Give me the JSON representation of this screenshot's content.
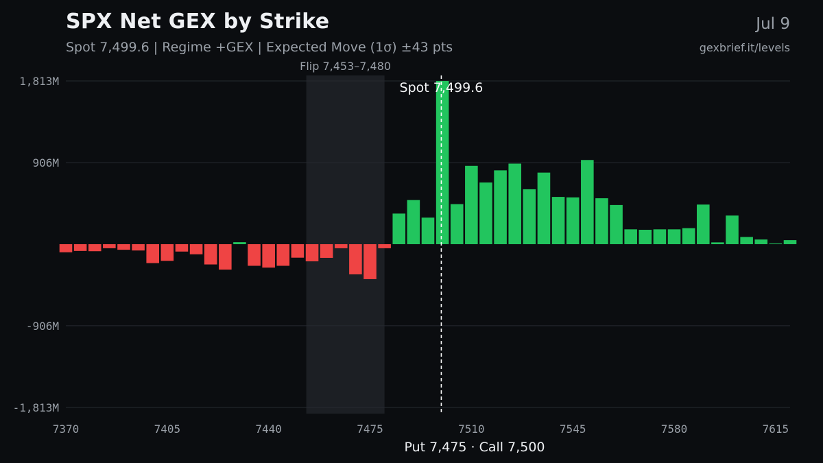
{
  "header": {
    "title": "SPX Net GEX by Strike",
    "subtitle": "Spot 7,499.6 | Regime +GEX | Expected Move (1σ) ±43 pts",
    "date": "Jul 9",
    "source": "gexbrief.it/levels"
  },
  "colors": {
    "background": "#0b0d10",
    "positive": "#22c55e",
    "negative": "#ef4444",
    "grid": "#262a31",
    "flip_zone": "#1c1f24",
    "spot_line": "#ffffff"
  },
  "chart_data": {
    "type": "bar",
    "title": "SPX Net GEX by Strike",
    "xlabel": "Put 7,475 · Call 7,500",
    "ylabel": "",
    "unit": "M",
    "ylim": [
      -1813,
      1813
    ],
    "xlim": [
      7370,
      7620
    ],
    "y_ticks": [
      1813,
      906,
      -906,
      -1813
    ],
    "y_tick_labels": [
      "1,813M",
      "906M",
      "-906M",
      "-1,813M"
    ],
    "x_ticks": [
      7370,
      7405,
      7440,
      7475,
      7510,
      7545,
      7580,
      7615
    ],
    "x_tick_labels": [
      "7370",
      "7405",
      "7440",
      "7475",
      "7510",
      "7545",
      "7580",
      "7615"
    ],
    "strikes": [
      7370,
      7375,
      7380,
      7385,
      7390,
      7395,
      7400,
      7405,
      7410,
      7415,
      7420,
      7425,
      7430,
      7435,
      7440,
      7445,
      7450,
      7455,
      7460,
      7465,
      7470,
      7475,
      7480,
      7485,
      7490,
      7495,
      7500,
      7505,
      7510,
      7515,
      7520,
      7525,
      7530,
      7535,
      7540,
      7545,
      7550,
      7555,
      7560,
      7565,
      7570,
      7575,
      7580,
      7585,
      7590,
      7595,
      7600,
      7605,
      7610,
      7615,
      7620
    ],
    "values": [
      -90,
      -75,
      -78,
      -45,
      -62,
      -70,
      -210,
      -185,
      -82,
      -112,
      -225,
      -282,
      22,
      -240,
      -260,
      -240,
      -150,
      -190,
      -152,
      -45,
      -335,
      -388,
      -45,
      340,
      490,
      295,
      1813,
      445,
      870,
      685,
      820,
      895,
      610,
      795,
      525,
      520,
      935,
      510,
      435,
      165,
      160,
      165,
      165,
      178,
      440,
      20,
      318,
      80,
      52,
      8,
      45
    ],
    "flip_zone": {
      "low": 7453,
      "high": 7480,
      "label": "Flip 7,453–7,480"
    },
    "spot": {
      "value": 7499.6,
      "label": "Spot 7,499.6"
    },
    "grid": true
  }
}
